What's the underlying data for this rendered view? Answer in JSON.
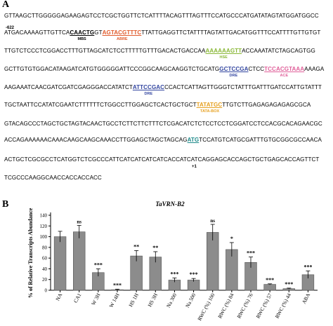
{
  "panelA": {
    "label": "A",
    "start_pos": "-622",
    "tss_pos": "+1",
    "lines": [
      [
        {
          "t": "GTTAAGCTTGGGGGAGAAGAGTCCTCGCTGGTTCTCATTTTACAGTTTAGTTTCCATGCCCATGATATAGTATGGATGGCC"
        }
      ],
      [
        {
          "t": "ATGACAAAAGTTGTTCA"
        },
        {
          "t": "CAACTG",
          "c": "#000000",
          "label": "MBS"
        },
        {
          "t": "GT"
        },
        {
          "t": "AGTACGTTTC",
          "c": "#e05a2b",
          "label": "ABRE"
        },
        {
          "t": "TTATTGAGGTTCTATTTTAGTATTGACATGGTTTCCATTTTGTTGTGT"
        }
      ],
      [
        {
          "t": "TTGTCTCCCTCGGACCTTTGTTAGCATCTCCTTTTTGTTTGACACTGACCAA"
        },
        {
          "t": "AAAAAAGTT",
          "c": "#8ab838",
          "label": "HSE"
        },
        {
          "t": "ACCAAATATCTAGCAGTGG"
        }
      ],
      [
        {
          "t": "GCTTGTGTGGACATAAGATCATGTGGGGGATTCCCGGCAAGCAAGGTCTGCATG"
        },
        {
          "t": "GCTCCGA",
          "c": "#3346a0",
          "label": "DRE"
        },
        {
          "t": "CTCC"
        },
        {
          "t": "TCCACGTAAA",
          "c": "#e0609a",
          "label": "ACE"
        },
        {
          "t": "AAAGA"
        }
      ],
      [
        {
          "t": "AAGAAATCAACGATCGATCGAGGGACCATATCT"
        },
        {
          "t": "ATTCCGAC",
          "c": "#3346a0",
          "label": "DRE"
        },
        {
          "t": "CCACTCATTAGTTGGGTCTATTTGATTTGATCCATTGTATTT"
        }
      ],
      [
        {
          "t": "TGCTAATTCCATATCGAATCTTTTTTCTGGCCTTGGAGCTCACTGCTGCT"
        },
        {
          "t": "TATATGC",
          "c": "#e6a020",
          "label": "TATA-BOX"
        },
        {
          "t": "TTGTCTTGAGAGAGAGAGCGCA"
        }
      ],
      [
        {
          "t": "GTACAGCCCTAGCTGCTAGTACAACTGCCTCTTCTTCTTTCTCGACATCTCTCCTCCTCGGATCCTCCACGCACAGAACGC"
        }
      ],
      [
        {
          "t": "ACCAGAAAAAACAAACAAGCAAGCAAACCTTGGAGCTAGCTAGCAG"
        },
        {
          "t": "ATG",
          "c": "#1e8a8a"
        },
        {
          "t": "TCCATGTCATGCGATTTGTGCGGCGCCAACA"
        }
      ],
      [
        {
          "t": "ACTGCTCGCGCCTCATGGTCTCGCCCATTCATCATCATCATCACCATCATCAGGAGCACCAGCTGCTGAGCACCAGTTCT"
        }
      ],
      [
        {
          "t": "TCGCCCAAGGCAACCACCACCACC"
        }
      ]
    ]
  },
  "panelB": {
    "label": "B"
  },
  "chart_data": {
    "type": "bar",
    "title": "TaVRN-B2",
    "ylabel": "% of Relative Transcripts Abundance",
    "xlabel": "",
    "ylim": [
      0,
      140
    ],
    "yticks": [
      0,
      20,
      40,
      60,
      80,
      100,
      120,
      140
    ],
    "grid": false,
    "bar_color": "#8c8c8c",
    "categories": [
      "NA",
      "CA1",
      "W 3H",
      "W 14H",
      "HS 1H",
      "HS 3H",
      "Na 300",
      "Na 500",
      "RWC (%) 100",
      "RWC (%) 84",
      "RWC (%) 76",
      "RWC (%) 57",
      "RWC (%) 44",
      "ABA"
    ],
    "values": [
      100,
      109,
      33,
      1,
      64,
      62,
      19,
      19,
      108,
      76,
      52,
      11,
      3,
      29
    ],
    "errors": [
      10,
      12,
      7,
      1,
      10,
      10,
      4,
      3,
      15,
      13,
      10,
      1,
      1,
      7
    ],
    "annotations": [
      "",
      "ns",
      "***",
      "***",
      "**",
      "**",
      "***",
      "***",
      "ns",
      "*",
      "***",
      "***",
      "***",
      "***"
    ]
  }
}
